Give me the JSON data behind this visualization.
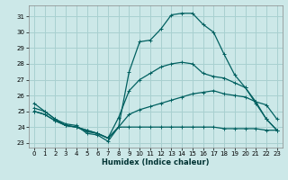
{
  "xlabel": "Humidex (Indice chaleur)",
  "xlim": [
    -0.5,
    23.5
  ],
  "ylim": [
    22.7,
    31.7
  ],
  "yticks": [
    23,
    24,
    25,
    26,
    27,
    28,
    29,
    30,
    31
  ],
  "xticks": [
    0,
    1,
    2,
    3,
    4,
    5,
    6,
    7,
    8,
    9,
    10,
    11,
    12,
    13,
    14,
    15,
    16,
    17,
    18,
    19,
    20,
    21,
    22,
    23
  ],
  "bg_color": "#cce8e8",
  "grid_color": "#a8d0d0",
  "line_color": "#006060",
  "series": [
    {
      "x": [
        0,
        1,
        2,
        3,
        4,
        5,
        6,
        7,
        8,
        9,
        10,
        11,
        12,
        13,
        14,
        15,
        16,
        17,
        18,
        19,
        20,
        21,
        22,
        23
      ],
      "y": [
        25.5,
        25.0,
        24.5,
        24.2,
        24.1,
        23.6,
        23.5,
        23.1,
        24.0,
        27.5,
        29.4,
        29.5,
        30.2,
        31.1,
        31.2,
        31.2,
        30.5,
        30.0,
        28.6,
        27.3,
        26.5,
        25.6,
        24.5,
        23.8
      ]
    },
    {
      "x": [
        0,
        1,
        2,
        3,
        4,
        5,
        6,
        7,
        8,
        9,
        10,
        11,
        12,
        13,
        14,
        15,
        16,
        17,
        18,
        19,
        20,
        21,
        22,
        23
      ],
      "y": [
        25.2,
        25.0,
        24.5,
        24.1,
        24.0,
        23.7,
        23.6,
        23.3,
        24.6,
        26.3,
        27.0,
        27.4,
        27.8,
        28.0,
        28.1,
        28.0,
        27.4,
        27.2,
        27.1,
        26.8,
        26.5,
        25.5,
        24.5,
        23.8
      ]
    },
    {
      "x": [
        0,
        1,
        2,
        3,
        4,
        5,
        6,
        7,
        8,
        9,
        10,
        11,
        12,
        13,
        14,
        15,
        16,
        17,
        18,
        19,
        20,
        21,
        22,
        23
      ],
      "y": [
        25.0,
        24.8,
        24.4,
        24.1,
        24.0,
        23.8,
        23.6,
        23.3,
        24.0,
        24.8,
        25.1,
        25.3,
        25.5,
        25.7,
        25.9,
        26.1,
        26.2,
        26.3,
        26.1,
        26.0,
        25.9,
        25.6,
        25.4,
        24.5
      ]
    },
    {
      "x": [
        0,
        1,
        2,
        3,
        4,
        5,
        6,
        7,
        8,
        9,
        10,
        11,
        12,
        13,
        14,
        15,
        16,
        17,
        18,
        19,
        20,
        21,
        22,
        23
      ],
      "y": [
        25.0,
        24.8,
        24.4,
        24.1,
        24.0,
        23.8,
        23.6,
        23.3,
        24.0,
        24.0,
        24.0,
        24.0,
        24.0,
        24.0,
        24.0,
        24.0,
        24.0,
        24.0,
        23.9,
        23.9,
        23.9,
        23.9,
        23.8,
        23.8
      ]
    }
  ]
}
